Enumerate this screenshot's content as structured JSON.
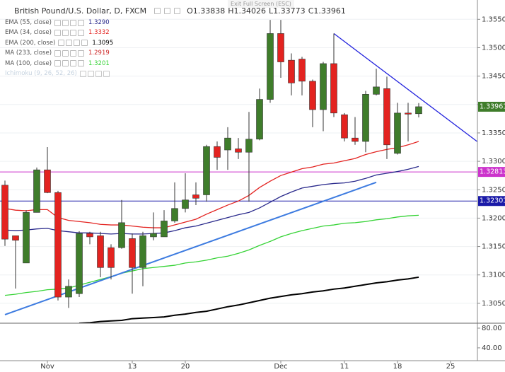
{
  "chart_data": {
    "type": "candlestick",
    "title": "British Pound/U.S. Dollar, D, FXCM",
    "banner": "Exit Full Screen (ESC)",
    "ohlc_labels": [
      "O",
      "H",
      "L",
      "C"
    ],
    "categories": [
      null,
      null,
      null,
      null,
      "Nov",
      null,
      null,
      null,
      null,
      null,
      null,
      null,
      "13",
      null,
      null,
      null,
      null,
      "20",
      null,
      null,
      null,
      null,
      null,
      null,
      null,
      null,
      "Dec",
      null,
      null,
      null,
      null,
      null,
      "11",
      null,
      null,
      null,
      null,
      "18",
      null,
      null,
      null,
      null,
      "25"
    ],
    "open": [
      1.3258,
      1.3169,
      1.3121,
      1.321,
      1.3285,
      1.3245,
      1.3061,
      1.3067,
      1.3173,
      1.3169,
      1.3148,
      1.3148,
      1.3164,
      1.3113,
      1.3167,
      1.3167,
      1.3195,
      1.3217,
      1.3241,
      1.3241,
      1.3326,
      1.332,
      1.3322,
      1.3316,
      1.3339,
      1.3409,
      1.3525,
      1.3478,
      1.348,
      1.3441,
      1.3391,
      1.3472,
      1.3382,
      1.3341,
      1.3335,
      1.3418,
      1.3428,
      1.3314,
      1.3385,
      1.33838,
      null,
      null,
      null
    ],
    "high": [
      1.3266,
      1.3169,
      1.3214,
      1.3289,
      1.3325,
      1.3248,
      1.3092,
      1.3177,
      1.3176,
      1.3176,
      1.3154,
      1.3232,
      1.3173,
      1.3176,
      1.321,
      1.3214,
      1.3263,
      1.3279,
      1.3263,
      1.3329,
      1.3335,
      1.336,
      1.3341,
      1.3387,
      1.3428,
      1.3549,
      1.3549,
      1.349,
      1.3484,
      1.3444,
      1.3475,
      1.3525,
      1.3385,
      1.3378,
      1.3424,
      1.3463,
      1.3449,
      1.3403,
      1.3403,
      1.34026,
      null,
      null,
      null
    ],
    "low": [
      1.3151,
      1.3076,
      1.3121,
      1.321,
      1.3244,
      1.3055,
      1.3042,
      1.3061,
      1.3154,
      1.3096,
      1.3092,
      1.3146,
      1.3067,
      1.308,
      1.3161,
      1.3167,
      1.3192,
      1.321,
      1.3223,
      1.3229,
      1.3285,
      1.3285,
      1.3304,
      1.3229,
      1.3337,
      1.3403,
      1.3447,
      1.3416,
      1.3416,
      1.336,
      1.3353,
      1.3378,
      1.3335,
      1.3329,
      1.3316,
      1.3416,
      1.3304,
      1.3312,
      1.3335,
      1.33773,
      null,
      null,
      null
    ],
    "close": [
      1.3163,
      1.3161,
      1.321,
      1.3285,
      1.3245,
      1.3061,
      1.308,
      1.3173,
      1.3167,
      1.3113,
      1.3113,
      1.3192,
      1.3113,
      1.3169,
      1.3173,
      1.3195,
      1.3217,
      1.3232,
      1.3235,
      1.3326,
      1.3307,
      1.3341,
      1.3316,
      1.3339,
      1.3409,
      1.3525,
      1.3475,
      1.3438,
      1.3441,
      1.3391,
      1.3472,
      1.3385,
      1.3341,
      1.3335,
      1.3418,
      1.3431,
      1.3329,
      1.3385,
      1.3383,
      1.33961,
      null,
      null,
      null
    ],
    "up_color": "#3f7d2b",
    "down_color": "#e32320",
    "last_price_color": "#3f7d2b",
    "series": [
      {
        "name": "EMA (55, close)",
        "color": "#2a2a8c",
        "legend_value": {
          "value": 1.329,
          "label": "1.3290"
        },
        "values": [
          1.3179,
          1.3178,
          1.3179,
          1.3181,
          1.3182,
          1.3178,
          1.3176,
          1.3174,
          1.3174,
          1.3173,
          1.3172,
          1.3173,
          1.3172,
          1.3172,
          1.3173,
          1.3174,
          1.3178,
          1.3183,
          1.3186,
          1.3191,
          1.3196,
          1.3201,
          1.3206,
          1.321,
          1.3218,
          1.3228,
          1.3238,
          1.3246,
          1.3253,
          1.3256,
          1.3259,
          1.3261,
          1.3262,
          1.3265,
          1.327,
          1.3276,
          1.3279,
          1.3282,
          1.3286,
          1.3291,
          null,
          null,
          null
        ]
      },
      {
        "name": "EMA (34, close)",
        "color": "#e32320",
        "legend_value": {
          "value": 1.3332,
          "label": "1.3332"
        },
        "values": [
          1.3217,
          1.3214,
          1.3213,
          1.3215,
          1.3215,
          1.3201,
          1.3196,
          1.3194,
          1.3192,
          1.3189,
          1.3188,
          1.3188,
          1.3186,
          1.3184,
          1.3183,
          1.3183,
          1.3188,
          1.3193,
          1.3198,
          1.3207,
          1.3215,
          1.3223,
          1.323,
          1.324,
          1.3254,
          1.3265,
          1.3275,
          1.3281,
          1.3287,
          1.329,
          1.3295,
          1.3297,
          1.3301,
          1.3305,
          1.3312,
          1.3317,
          1.3321,
          1.3324,
          1.3329,
          1.3335,
          null,
          null,
          null
        ]
      },
      {
        "name": "EMA (200, close)",
        "color": "#000000",
        "legend_value": {
          "value": 1.3095,
          "label": "1.3095"
        },
        "values": [
          null,
          null,
          null,
          null,
          null,
          null,
          null,
          1.3015,
          1.3016,
          1.3018,
          1.3019,
          1.302,
          1.3023,
          1.3024,
          1.3025,
          1.3026,
          1.3029,
          1.3031,
          1.3034,
          1.3036,
          1.304,
          1.3044,
          1.3047,
          1.3051,
          1.3055,
          1.3059,
          1.3062,
          1.3065,
          1.3067,
          1.307,
          1.3072,
          1.3075,
          1.3077,
          1.308,
          1.3083,
          1.3086,
          1.3088,
          1.3091,
          1.3093,
          1.3096,
          null,
          null,
          null
        ]
      },
      {
        "name": "MA (233, close)",
        "color": "#cc2222",
        "legend_value": {
          "value": 1.2919,
          "label": "1.2919"
        }
      },
      {
        "name": "MA (100, close)",
        "color": "#36d336",
        "legend_value": {
          "value": 1.3201,
          "label": "1.3201"
        },
        "values": [
          1.3064,
          1.3066,
          1.3069,
          1.3071,
          1.3074,
          1.3075,
          1.3077,
          1.3082,
          1.3087,
          1.3092,
          1.3097,
          1.3103,
          1.3107,
          1.3111,
          1.3113,
          1.3115,
          1.3117,
          1.3121,
          1.3123,
          1.3126,
          1.313,
          1.3133,
          1.3138,
          1.3144,
          1.3152,
          1.3159,
          1.3167,
          1.3173,
          1.3178,
          1.3182,
          1.3186,
          1.3188,
          1.3191,
          1.3192,
          1.3194,
          1.3197,
          1.3199,
          1.3202,
          1.3204,
          1.3205,
          null,
          null,
          null
        ]
      },
      {
        "name": "Ichimoku (9, 26, 52, 26)",
        "color": "#b8c8d8"
      }
    ],
    "hlines": [
      {
        "value": 1.32813,
        "color": "#cc33cc"
      },
      {
        "value": 1.32301,
        "color": "#1a1aa8"
      }
    ],
    "trendlines": [
      {
        "x": [
          31,
          44.5
        ],
        "y": [
          1.3525,
          1.3335
        ],
        "color": "#2222dd"
      },
      {
        "x": [
          0,
          35
        ],
        "y": [
          1.303,
          1.3263
        ],
        "color": "#3d7be0"
      }
    ],
    "ylim": [
      1.3015,
      1.3584
    ],
    "yticks": [
      {
        "value": 1.305,
        "label": "1.30500"
      },
      {
        "value": 1.31,
        "label": "1.31000"
      },
      {
        "value": 1.315,
        "label": "1.31500"
      },
      {
        "value": 1.32,
        "label": "1.32000"
      },
      {
        "value": 1.325,
        "label": "1.32500"
      },
      {
        "value": 1.33,
        "label": "1.33000"
      },
      {
        "value": 1.335,
        "label": "1.33500"
      },
      {
        "value": 1.34,
        "label": "1.34000"
      },
      {
        "value": 1.345,
        "label": "1.34500"
      },
      {
        "value": 1.35,
        "label": "1.35000"
      },
      {
        "value": 1.355,
        "label": "1.35500"
      }
    ],
    "grid": true,
    "lower_pane": {
      "ylim": [
        14,
        90
      ],
      "yticks": [
        {
          "value": 80,
          "label": "80.00"
        },
        {
          "value": 40,
          "label": "40.00"
        }
      ]
    }
  }
}
